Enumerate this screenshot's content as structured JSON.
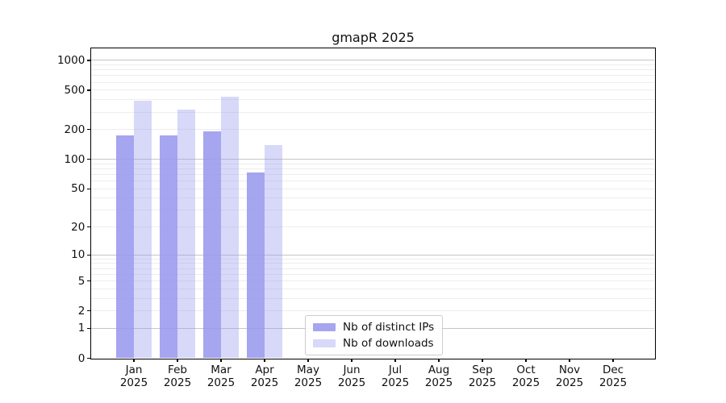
{
  "chart_data": {
    "type": "bar",
    "title": "gmapR 2025",
    "categories": [
      "Jan",
      "Feb",
      "Mar",
      "Apr",
      "May",
      "Jun",
      "Jul",
      "Aug",
      "Sep",
      "Oct",
      "Nov",
      "Dec"
    ],
    "year_label": "2025",
    "series": [
      {
        "name": "Nb of distinct IPs",
        "color": "rgba(153,153,238,0.88)",
        "color_hex_on_white": "#a5a5f0",
        "values": [
          175,
          175,
          190,
          73,
          null,
          null,
          null,
          null,
          null,
          null,
          null,
          null
        ]
      },
      {
        "name": "Nb of downloads",
        "color": "rgba(153,153,238,0.38)",
        "color_hex_on_white": "#d8d8f8",
        "values": [
          390,
          317,
          426,
          138,
          null,
          null,
          null,
          null,
          null,
          null,
          null,
          null
        ]
      }
    ],
    "y_axis": {
      "scale": "log10(1+x)",
      "ticks": [
        0,
        1,
        2,
        5,
        10,
        20,
        50,
        100,
        200,
        500,
        1000
      ],
      "top_value": 1300
    },
    "x_axis": {
      "tick_label_line2": "2025"
    },
    "grid": {
      "major_values": [
        1,
        10,
        100,
        1000
      ],
      "minor_bases": [
        1,
        10,
        100
      ],
      "major_color": "#c6c6c6",
      "minor_color": "#ededed"
    },
    "legend": {
      "position": "bottom-center",
      "border_color": "#cccccc"
    },
    "frame_color": "#000000",
    "background_color": "#ffffff"
  }
}
